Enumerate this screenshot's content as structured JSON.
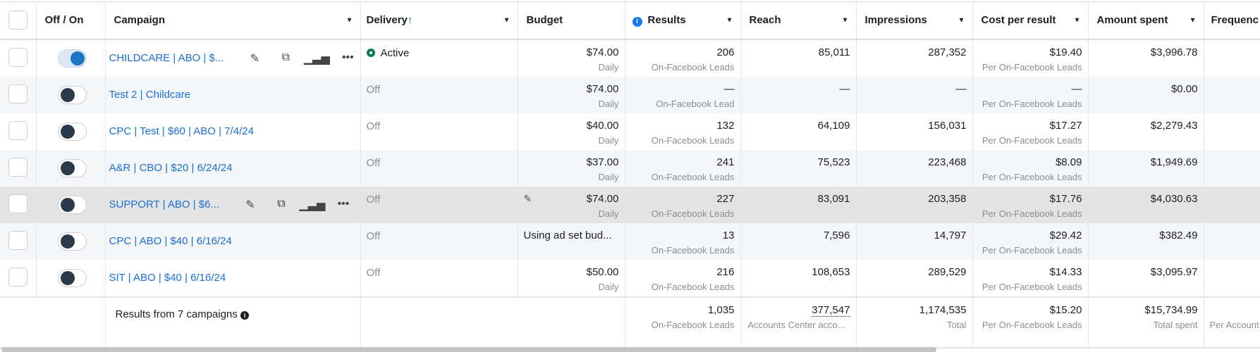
{
  "headers": {
    "off_on": "Off / On",
    "campaign": "Campaign",
    "delivery": "Delivery",
    "delivery_sort": "↑",
    "budget": "Budget",
    "results": "Results",
    "reach": "Reach",
    "impressions": "Impressions",
    "cost_per_result": "Cost per result",
    "amount_spent": "Amount spent",
    "frequency": "Frequenc"
  },
  "accent": "#1a6ed8",
  "rows": [
    {
      "name": "CHILDCARE | ABO | $...",
      "on": true,
      "delivery": "Active",
      "budget": "$74.00",
      "budget_sub": "Daily",
      "results": "206",
      "results_sub": "On-Facebook Leads",
      "reach": "85,011",
      "impressions": "287,352",
      "cpr": "$19.40",
      "cpr_sub": "Per On-Facebook Leads",
      "spent": "$3,996.78",
      "actions": true
    },
    {
      "name": "Test 2 | Childcare",
      "on": false,
      "delivery": "Off",
      "budget": "$74.00",
      "budget_sub": "Daily",
      "results": "—",
      "results_sub": "On-Facebook Lead",
      "reach": "—",
      "impressions": "—",
      "cpr": "—",
      "cpr_sub": "Per On-Facebook Leads",
      "spent": "$0.00"
    },
    {
      "name": "CPC | Test | $60 | ABO | 7/4/24",
      "on": false,
      "delivery": "Off",
      "budget": "$40.00",
      "budget_sub": "Daily",
      "results": "132",
      "results_sub": "On-Facebook Leads",
      "reach": "64,109",
      "impressions": "156,031",
      "cpr": "$17.27",
      "cpr_sub": "Per On-Facebook Leads",
      "spent": "$2,279.43"
    },
    {
      "name": "A&R | CBO | $20 | 6/24/24",
      "on": false,
      "delivery": "Off",
      "budget": "$37.00",
      "budget_sub": "Daily",
      "results": "241",
      "results_sub": "On-Facebook Leads",
      "reach": "75,523",
      "impressions": "223,468",
      "cpr": "$8.09",
      "cpr_sub": "Per On-Facebook Leads",
      "spent": "$1,949.69"
    },
    {
      "name": "SUPPORT | ABO | $6...",
      "on": false,
      "delivery": "Off",
      "budget": "$74.00",
      "budget_sub": "Daily",
      "results": "227",
      "results_sub": "On-Facebook Leads",
      "reach": "83,091",
      "impressions": "203,358",
      "cpr": "$17.76",
      "cpr_sub": "Per On-Facebook Leads",
      "spent": "$4,030.63",
      "actions": true,
      "hover": true
    },
    {
      "name": "CPC | ABO | $40 | 6/16/24",
      "on": false,
      "delivery": "Off",
      "budget": "Using ad set bud...",
      "budget_sub": "",
      "results": "13",
      "results_sub": "On-Facebook Leads",
      "reach": "7,596",
      "impressions": "14,797",
      "cpr": "$29.42",
      "cpr_sub": "Per On-Facebook Leads",
      "spent": "$382.49"
    },
    {
      "name": "SIT | ABO | $40 | 6/16/24",
      "on": false,
      "delivery": "Off",
      "budget": "$50.00",
      "budget_sub": "Daily",
      "results": "216",
      "results_sub": "On-Facebook Leads",
      "reach": "108,653",
      "impressions": "289,529",
      "cpr": "$14.33",
      "cpr_sub": "Per On-Facebook Leads",
      "spent": "$3,095.97"
    }
  ],
  "footer": {
    "label": "Results from 7 campaigns",
    "results": "1,035",
    "results_sub": "On-Facebook Leads",
    "reach": "377,547",
    "reach_sub": "Accounts Center acco...",
    "impressions": "1,174,535",
    "impressions_sub": "Total",
    "cpr": "$15.20",
    "cpr_sub": "Per On-Facebook Leads",
    "spent": "$15,734.99",
    "spent_sub": "Total spent",
    "frequency_sub": "Per Account"
  }
}
